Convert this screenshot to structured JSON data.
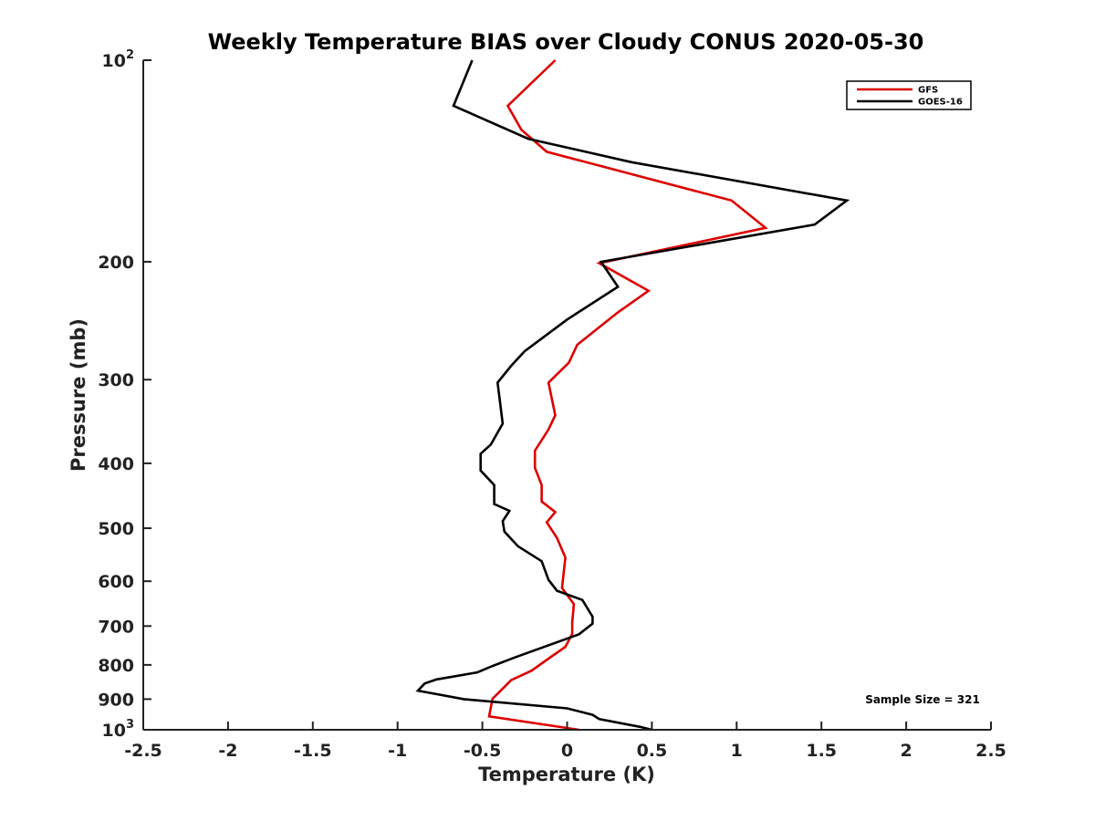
{
  "chart_data": {
    "type": "line",
    "title": "Weekly Temperature BIAS over Cloudy CONUS 2020-05-30",
    "xlabel": "Temperature (K)",
    "ylabel": "Pressure (mb)",
    "xlim": [
      -2.5,
      2.5
    ],
    "ylim": [
      100,
      1000
    ],
    "y_scale": "log",
    "y_reversed": true,
    "x_ticks": [
      "-2.5",
      "-2",
      "-1.5",
      "-1",
      "-0.5",
      "0",
      "0.5",
      "1",
      "1.5",
      "2",
      "2.5"
    ],
    "y_ticks": [
      {
        "value": 100,
        "base": "10",
        "exp": "2"
      },
      {
        "value": 200,
        "label": "200"
      },
      {
        "value": 300,
        "label": "300"
      },
      {
        "value": 400,
        "label": "400"
      },
      {
        "value": 500,
        "label": "500"
      },
      {
        "value": 600,
        "label": "600"
      },
      {
        "value": 700,
        "label": "700"
      },
      {
        "value": 800,
        "label": "800"
      },
      {
        "value": 900,
        "label": "900"
      },
      {
        "value": 1000,
        "base": "10",
        "exp": "3"
      }
    ],
    "grid": false,
    "legend_position": "top-right",
    "annotation": "Sample Size = 321",
    "series": [
      {
        "name": "GFS",
        "color": "#dd0000",
        "points": [
          [
            -0.07,
            100
          ],
          [
            -0.35,
            117
          ],
          [
            -0.27,
            127
          ],
          [
            -0.12,
            137
          ],
          [
            0.97,
            162
          ],
          [
            1.17,
            178
          ],
          [
            0.19,
            201
          ],
          [
            0.48,
            221
          ],
          [
            0.3,
            238
          ],
          [
            0.06,
            266
          ],
          [
            0.01,
            283
          ],
          [
            -0.11,
            303
          ],
          [
            -0.07,
            339
          ],
          [
            -0.11,
            356
          ],
          [
            -0.19,
            383
          ],
          [
            -0.19,
            406
          ],
          [
            -0.15,
            431
          ],
          [
            -0.15,
            456
          ],
          [
            -0.07,
            473
          ],
          [
            -0.12,
            490
          ],
          [
            -0.06,
            517
          ],
          [
            -0.01,
            553
          ],
          [
            -0.03,
            614
          ],
          [
            0.04,
            649
          ],
          [
            0.03,
            691
          ],
          [
            0.03,
            719
          ],
          [
            -0.01,
            752
          ],
          [
            -0.11,
            783
          ],
          [
            -0.21,
            816
          ],
          [
            -0.33,
            843
          ],
          [
            -0.44,
            899
          ],
          [
            -0.46,
            955
          ],
          [
            0.07,
            1000
          ]
        ]
      },
      {
        "name": "GOES-16",
        "color": "#000000",
        "points": [
          [
            -0.56,
            100
          ],
          [
            -0.67,
            117
          ],
          [
            -0.23,
            131
          ],
          [
            0.38,
            142
          ],
          [
            1.65,
            162
          ],
          [
            1.46,
            176
          ],
          [
            0.2,
            200
          ],
          [
            0.3,
            218
          ],
          [
            0.0,
            244
          ],
          [
            -0.25,
            272
          ],
          [
            -0.33,
            286
          ],
          [
            -0.41,
            303
          ],
          [
            -0.38,
            349
          ],
          [
            -0.45,
            375
          ],
          [
            -0.51,
            387
          ],
          [
            -0.51,
            410
          ],
          [
            -0.43,
            431
          ],
          [
            -0.43,
            460
          ],
          [
            -0.34,
            471
          ],
          [
            -0.38,
            488
          ],
          [
            -0.37,
            506
          ],
          [
            -0.29,
            532
          ],
          [
            -0.15,
            560
          ],
          [
            -0.11,
            597
          ],
          [
            -0.06,
            620
          ],
          [
            0.09,
            640
          ],
          [
            0.15,
            678
          ],
          [
            0.15,
            694
          ],
          [
            0.07,
            720
          ],
          [
            -0.31,
            780
          ],
          [
            -0.44,
            803
          ],
          [
            -0.53,
            821
          ],
          [
            -0.77,
            841
          ],
          [
            -0.84,
            853
          ],
          [
            -0.88,
            874
          ],
          [
            -0.61,
            900
          ],
          [
            0.0,
            929
          ],
          [
            0.15,
            950
          ],
          [
            0.19,
            964
          ],
          [
            0.43,
            990
          ],
          [
            0.5,
            1000
          ]
        ]
      }
    ]
  }
}
